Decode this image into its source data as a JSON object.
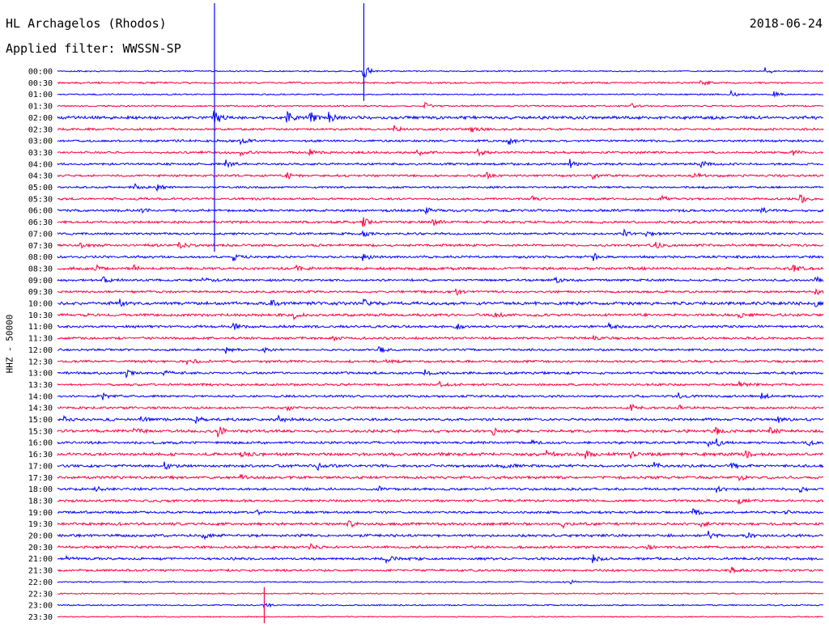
{
  "header": {
    "station": "HL Archagelos (Rhodos)",
    "date": "2018-06-24",
    "filter": "Applied filter: WWSSN-SP"
  },
  "axis": {
    "ylabel": "HHZ - 50000"
  },
  "colors": {
    "even_line": "#0000ff",
    "odd_line": "#ff0040",
    "background": "#ffffff"
  },
  "chart_data": {
    "type": "line",
    "title": "HL Archagelos (Rhodos)",
    "subtitle": "Applied filter: WWSSN-SP",
    "ylabel": "HHZ - 50000",
    "xlabel": "",
    "grid": false,
    "categories": [
      "00:00",
      "00:30",
      "01:00",
      "01:30",
      "02:00",
      "02:30",
      "03:00",
      "03:30",
      "04:00",
      "04:30",
      "05:00",
      "05:30",
      "06:00",
      "06:30",
      "07:00",
      "07:30",
      "08:00",
      "08:30",
      "09:00",
      "09:30",
      "10:00",
      "10:30",
      "11:00",
      "11:30",
      "12:00",
      "12:30",
      "13:00",
      "13:30",
      "14:00",
      "14:30",
      "15:00",
      "15:30",
      "16:00",
      "16:30",
      "17:00",
      "17:30",
      "18:00",
      "18:30",
      "19:00",
      "19:30",
      "20:00",
      "20:30",
      "21:00",
      "21:30",
      "22:00",
      "22:30",
      "23:00",
      "23:30"
    ],
    "series_colors": [
      "#0000ff",
      "#ff0040"
    ],
    "row_noise": [
      0.6,
      0.8,
      0.6,
      0.7,
      1.4,
      1.0,
      1.0,
      1.0,
      1.0,
      1.0,
      0.9,
      1.0,
      1.1,
      1.1,
      1.0,
      1.1,
      1.1,
      1.2,
      1.0,
      1.0,
      1.4,
      1.2,
      1.1,
      1.1,
      1.0,
      1.1,
      1.1,
      1.0,
      1.0,
      1.0,
      1.2,
      1.3,
      1.1,
      1.4,
      1.2,
      1.2,
      1.1,
      1.1,
      1.0,
      1.2,
      1.2,
      1.1,
      1.1,
      1.0,
      0.6,
      0.6,
      0.6,
      0.5
    ],
    "events": [
      {
        "row": 0,
        "t": 0.4,
        "amp": 9
      },
      {
        "row": 0,
        "t": 0.925,
        "amp": 3
      },
      {
        "row": 1,
        "t": 0.84,
        "amp": 3
      },
      {
        "row": 2,
        "t": 0.88,
        "amp": 3
      },
      {
        "row": 2,
        "t": 0.935,
        "amp": 3
      },
      {
        "row": 3,
        "t": 0.48,
        "amp": 3
      },
      {
        "row": 3,
        "t": 0.75,
        "amp": 2
      },
      {
        "row": 4,
        "t": 0.205,
        "amp": 7
      },
      {
        "row": 4,
        "t": 0.3,
        "amp": 6
      },
      {
        "row": 4,
        "t": 0.33,
        "amp": 5
      },
      {
        "row": 4,
        "t": 0.355,
        "amp": 4
      },
      {
        "row": 5,
        "t": 0.44,
        "amp": 4
      },
      {
        "row": 5,
        "t": 0.54,
        "amp": 3
      },
      {
        "row": 6,
        "t": 0.24,
        "amp": 3
      },
      {
        "row": 6,
        "t": 0.59,
        "amp": 3
      },
      {
        "row": 7,
        "t": 0.24,
        "amp": 3
      },
      {
        "row": 7,
        "t": 0.33,
        "amp": 3
      },
      {
        "row": 7,
        "t": 0.47,
        "amp": 3
      },
      {
        "row": 7,
        "t": 0.55,
        "amp": 3
      },
      {
        "row": 7,
        "t": 0.96,
        "amp": 3
      },
      {
        "row": 8,
        "t": 0.22,
        "amp": 4
      },
      {
        "row": 8,
        "t": 0.67,
        "amp": 4
      },
      {
        "row": 8,
        "t": 0.84,
        "amp": 3
      },
      {
        "row": 9,
        "t": 0.3,
        "amp": 3
      },
      {
        "row": 9,
        "t": 0.56,
        "amp": 3
      },
      {
        "row": 9,
        "t": 0.7,
        "amp": 3
      },
      {
        "row": 9,
        "t": 0.83,
        "amp": 3
      },
      {
        "row": 10,
        "t": 0.1,
        "amp": 3
      },
      {
        "row": 10,
        "t": 0.13,
        "amp": 3
      },
      {
        "row": 11,
        "t": 0.62,
        "amp": 3
      },
      {
        "row": 11,
        "t": 0.79,
        "amp": 3
      },
      {
        "row": 11,
        "t": 0.97,
        "amp": 4
      },
      {
        "row": 12,
        "t": 0.11,
        "amp": 2
      },
      {
        "row": 12,
        "t": 0.48,
        "amp": 3
      },
      {
        "row": 12,
        "t": 0.92,
        "amp": 3
      },
      {
        "row": 13,
        "t": 0.4,
        "amp": 4
      },
      {
        "row": 13,
        "t": 0.49,
        "amp": 4
      },
      {
        "row": 14,
        "t": 0.4,
        "amp": 3
      },
      {
        "row": 14,
        "t": 0.74,
        "amp": 3
      },
      {
        "row": 14,
        "t": 0.77,
        "amp": 3
      },
      {
        "row": 15,
        "t": 0.03,
        "amp": 3
      },
      {
        "row": 15,
        "t": 0.16,
        "amp": 3
      },
      {
        "row": 15,
        "t": 0.78,
        "amp": 3
      },
      {
        "row": 16,
        "t": 0.23,
        "amp": 3
      },
      {
        "row": 16,
        "t": 0.4,
        "amp": 3
      },
      {
        "row": 16,
        "t": 0.7,
        "amp": 3
      },
      {
        "row": 17,
        "t": 0.05,
        "amp": 3
      },
      {
        "row": 17,
        "t": 0.1,
        "amp": 3
      },
      {
        "row": 17,
        "t": 0.31,
        "amp": 3
      },
      {
        "row": 17,
        "t": 0.96,
        "amp": 3
      },
      {
        "row": 18,
        "t": 0.06,
        "amp": 3
      },
      {
        "row": 18,
        "t": 0.19,
        "amp": 3
      },
      {
        "row": 18,
        "t": 0.65,
        "amp": 3
      },
      {
        "row": 18,
        "t": 0.99,
        "amp": 3
      },
      {
        "row": 19,
        "t": 0.52,
        "amp": 3
      },
      {
        "row": 19,
        "t": 0.99,
        "amp": 3
      },
      {
        "row": 20,
        "t": 0.08,
        "amp": 4
      },
      {
        "row": 20,
        "t": 0.28,
        "amp": 3
      },
      {
        "row": 20,
        "t": 0.4,
        "amp": 3
      },
      {
        "row": 20,
        "t": 0.99,
        "amp": 3
      },
      {
        "row": 21,
        "t": 0.31,
        "amp": 3
      },
      {
        "row": 21,
        "t": 0.57,
        "amp": 3
      },
      {
        "row": 21,
        "t": 0.89,
        "amp": 3
      },
      {
        "row": 22,
        "t": 0.23,
        "amp": 3
      },
      {
        "row": 22,
        "t": 0.52,
        "amp": 3
      },
      {
        "row": 22,
        "t": 0.72,
        "amp": 3
      },
      {
        "row": 23,
        "t": 0.36,
        "amp": 3
      },
      {
        "row": 23,
        "t": 0.7,
        "amp": 3
      },
      {
        "row": 24,
        "t": 0.22,
        "amp": 3
      },
      {
        "row": 24,
        "t": 0.27,
        "amp": 3
      },
      {
        "row": 24,
        "t": 0.42,
        "amp": 3
      },
      {
        "row": 25,
        "t": 0.17,
        "amp": 3
      },
      {
        "row": 25,
        "t": 0.43,
        "amp": 3
      },
      {
        "row": 26,
        "t": 0.09,
        "amp": 3
      },
      {
        "row": 26,
        "t": 0.14,
        "amp": 3
      },
      {
        "row": 26,
        "t": 0.48,
        "amp": 3
      },
      {
        "row": 27,
        "t": 0.5,
        "amp": 3
      },
      {
        "row": 27,
        "t": 0.89,
        "amp": 3
      },
      {
        "row": 28,
        "t": 0.06,
        "amp": 3
      },
      {
        "row": 28,
        "t": 0.81,
        "amp": 3
      },
      {
        "row": 28,
        "t": 0.92,
        "amp": 3
      },
      {
        "row": 29,
        "t": 0.3,
        "amp": 3
      },
      {
        "row": 29,
        "t": 0.75,
        "amp": 3
      },
      {
        "row": 29,
        "t": 0.81,
        "amp": 3
      },
      {
        "row": 30,
        "t": 0.01,
        "amp": 3
      },
      {
        "row": 30,
        "t": 0.11,
        "amp": 3
      },
      {
        "row": 30,
        "t": 0.18,
        "amp": 3
      },
      {
        "row": 30,
        "t": 0.29,
        "amp": 3
      },
      {
        "row": 30,
        "t": 0.94,
        "amp": 3
      },
      {
        "row": 31,
        "t": 0.1,
        "amp": 3
      },
      {
        "row": 31,
        "t": 0.21,
        "amp": 5
      },
      {
        "row": 31,
        "t": 0.57,
        "amp": 3
      },
      {
        "row": 31,
        "t": 0.86,
        "amp": 3
      },
      {
        "row": 31,
        "t": 0.93,
        "amp": 3
      },
      {
        "row": 32,
        "t": 0.62,
        "amp": 3
      },
      {
        "row": 32,
        "t": 0.85,
        "amp": 3
      },
      {
        "row": 32,
        "t": 0.86,
        "amp": 4
      },
      {
        "row": 32,
        "t": 0.98,
        "amp": 3
      },
      {
        "row": 33,
        "t": 0.24,
        "amp": 3
      },
      {
        "row": 33,
        "t": 0.64,
        "amp": 3
      },
      {
        "row": 33,
        "t": 0.69,
        "amp": 4
      },
      {
        "row": 33,
        "t": 0.75,
        "amp": 3
      },
      {
        "row": 33,
        "t": 0.9,
        "amp": 3
      },
      {
        "row": 34,
        "t": 0.14,
        "amp": 3
      },
      {
        "row": 34,
        "t": 0.34,
        "amp": 3
      },
      {
        "row": 34,
        "t": 0.58,
        "amp": 3
      },
      {
        "row": 34,
        "t": 0.78,
        "amp": 3
      },
      {
        "row": 34,
        "t": 0.88,
        "amp": 3
      },
      {
        "row": 35,
        "t": 0.24,
        "amp": 3
      },
      {
        "row": 35,
        "t": 0.89,
        "amp": 3
      },
      {
        "row": 36,
        "t": 0.05,
        "amp": 3
      },
      {
        "row": 36,
        "t": 0.42,
        "amp": 3
      },
      {
        "row": 36,
        "t": 0.86,
        "amp": 3
      },
      {
        "row": 36,
        "t": 0.97,
        "amp": 3
      },
      {
        "row": 37,
        "t": 0.89,
        "amp": 2
      },
      {
        "row": 38,
        "t": 0.26,
        "amp": 2
      },
      {
        "row": 38,
        "t": 0.83,
        "amp": 3
      },
      {
        "row": 38,
        "t": 0.95,
        "amp": 2
      },
      {
        "row": 39,
        "t": 0.38,
        "amp": 3
      },
      {
        "row": 39,
        "t": 0.66,
        "amp": 3
      },
      {
        "row": 39,
        "t": 0.84,
        "amp": 3
      },
      {
        "row": 40,
        "t": 0.19,
        "amp": 3
      },
      {
        "row": 40,
        "t": 0.85,
        "amp": 3
      },
      {
        "row": 40,
        "t": 0.9,
        "amp": 3
      },
      {
        "row": 41,
        "t": 0.33,
        "amp": 3
      },
      {
        "row": 41,
        "t": 0.77,
        "amp": 3
      },
      {
        "row": 42,
        "t": 0.01,
        "amp": 3
      },
      {
        "row": 42,
        "t": 0.43,
        "amp": 3
      },
      {
        "row": 42,
        "t": 0.7,
        "amp": 3
      },
      {
        "row": 43,
        "t": 0.88,
        "amp": 3
      },
      {
        "row": 44,
        "t": 0.67,
        "amp": 2
      },
      {
        "row": 46,
        "t": 0.27,
        "amp": 3
      }
    ],
    "long_spikes": [
      {
        "start_row": 0,
        "end_row": 15,
        "t": 0.205
      },
      {
        "start_row": 0,
        "end_row": 2,
        "t": 0.4
      },
      {
        "start_row": 45,
        "end_row": 47,
        "t": 0.27
      }
    ]
  }
}
